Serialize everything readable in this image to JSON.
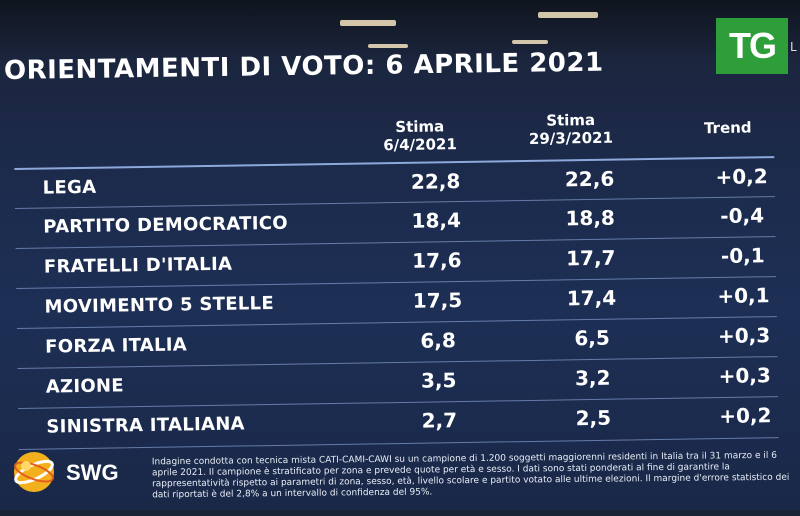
{
  "title": "ORIENTAMENTI DI VOTO: 6 APRILE 2021",
  "logo": {
    "text": "TG",
    "tail": "L"
  },
  "columns": {
    "col1": [
      "Stima",
      "6/4/2021"
    ],
    "col2": [
      "Stima",
      "29/3/2021"
    ],
    "col3": "Trend"
  },
  "rows": [
    {
      "party": "LEGA",
      "a": "22,8",
      "b": "22,6",
      "trend": "+0,2"
    },
    {
      "party": "PARTITO DEMOCRATICO",
      "a": "18,4",
      "b": "18,8",
      "trend": "-0,4"
    },
    {
      "party": "FRATELLI D'ITALIA",
      "a": "17,6",
      "b": "17,7",
      "trend": "-0,1"
    },
    {
      "party": "MOVIMENTO 5 STELLE",
      "a": "17,5",
      "b": "17,4",
      "trend": "+0,1"
    },
    {
      "party": "FORZA ITALIA",
      "a": "6,8",
      "b": "6,5",
      "trend": "+0,3"
    },
    {
      "party": "AZIONE",
      "a": "3,5",
      "b": "3,2",
      "trend": "+0,3"
    },
    {
      "party": "SINISTRA ITALIANA",
      "a": "2,7",
      "b": "2,5",
      "trend": "+0,2"
    }
  ],
  "source": {
    "brand": "SWG",
    "note": "Indagine condotta con tecnica mista CATI-CAMI-CAWI su un campione di 1.200 soggetti maggiorenni residenti in Italia tra il 31 marzo e il 6 aprile 2021. Il campione è stratificato per zona e prevede quote per età e sesso. I dati sono stati ponderati al fine di garantire la rappresentatività rispetto ai parametri di zona, sesso, età, livello scolare e partito votato alle ultime elezioni. Il margine d'errore statistico dei dati riportati è del 2,8% a un intervallo di confidenza del 95%."
  },
  "colors": {
    "background": "#1d2f55",
    "logo_green": "#2e9e3a",
    "divider": "#a0bef0"
  }
}
